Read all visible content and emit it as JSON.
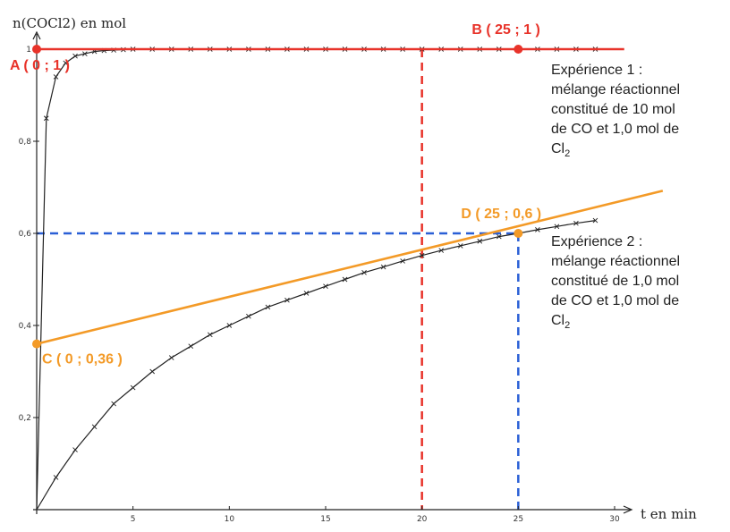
{
  "chart_data": {
    "type": "line",
    "xlabel": "t en min",
    "ylabel": "n(COCl2) en mol",
    "xlim": [
      0,
      30
    ],
    "ylim": [
      0,
      1
    ],
    "xticks": [
      {
        "value": 5,
        "label": "5"
      },
      {
        "value": 10,
        "label": "10"
      },
      {
        "value": 15,
        "label": "15"
      },
      {
        "value": 20,
        "label": "20"
      },
      {
        "value": 25,
        "label": "25"
      },
      {
        "value": 30,
        "label": "30"
      }
    ],
    "yticks": [
      {
        "value": 0.2,
        "label": "0,2"
      },
      {
        "value": 0.4,
        "label": "0,4"
      },
      {
        "value": 0.6,
        "label": "0,6"
      },
      {
        "value": 0.8,
        "label": "0,8"
      },
      {
        "value": 1,
        "label": "1"
      }
    ],
    "series": [
      {
        "color": "#222222",
        "marker": "x",
        "x": [
          0,
          0.5,
          1,
          1.5,
          2,
          2.5,
          3,
          3.5,
          4,
          4.5,
          5,
          6,
          7,
          8,
          9,
          10,
          11,
          12,
          13,
          14,
          15,
          16,
          17,
          18,
          19,
          20,
          21,
          22,
          23,
          24,
          25,
          26,
          27,
          28,
          29
        ],
        "y": [
          0,
          0.85,
          0.94,
          0.97,
          0.985,
          0.99,
          0.995,
          0.997,
          0.998,
          0.999,
          1,
          1,
          1,
          1,
          1,
          1,
          1,
          1,
          1,
          1,
          1,
          1,
          1,
          1,
          1,
          1,
          1,
          1,
          1,
          1,
          1,
          1,
          1,
          1,
          1
        ],
        "note": "Expérience 1"
      },
      {
        "color": "#222222",
        "marker": "x",
        "x": [
          0,
          1,
          2,
          3,
          4,
          5,
          6,
          7,
          8,
          9,
          10,
          11,
          12,
          13,
          14,
          15,
          16,
          17,
          18,
          19,
          20,
          21,
          22,
          23,
          24,
          25,
          26,
          27,
          28,
          29
        ],
        "y": [
          0,
          0.07,
          0.13,
          0.18,
          0.23,
          0.265,
          0.3,
          0.33,
          0.355,
          0.38,
          0.4,
          0.42,
          0.44,
          0.455,
          0.47,
          0.485,
          0.5,
          0.515,
          0.527,
          0.54,
          0.552,
          0.563,
          0.573,
          0.583,
          0.593,
          0.6,
          0.608,
          0.615,
          0.622,
          0.628
        ],
        "note": "Expérience 2"
      }
    ],
    "points": [
      {
        "name": "A",
        "label": "A ( 0 ; 1 )",
        "x": 0,
        "y": 1,
        "color": "#e8332a"
      },
      {
        "name": "B",
        "label": "B ( 25 ; 1 )",
        "x": 25,
        "y": 1,
        "color": "#e8332a"
      },
      {
        "name": "C",
        "label": "C ( 0 ; 0,36 )",
        "x": 0,
        "y": 0.36,
        "color": "#f39a27"
      },
      {
        "name": "D",
        "label": "D ( 25 ; 0,6 )",
        "x": 25,
        "y": 0.6,
        "color": "#f39a27"
      }
    ],
    "tangent_lines": [
      {
        "name": "tangent-1",
        "x": [
          0,
          30.5
        ],
        "y": [
          1,
          1
        ],
        "color": "#e8332a"
      },
      {
        "name": "tangent-2",
        "x": [
          0,
          32.5
        ],
        "y": [
          0.36,
          0.6924
        ],
        "color": "#f39a27"
      }
    ],
    "guides": [
      {
        "name": "red-vertical-guide",
        "x": [
          20,
          20
        ],
        "y": [
          1,
          0
        ],
        "color": "#e8332a"
      },
      {
        "name": "blue-horizontal-guide",
        "x": [
          0,
          25
        ],
        "y": [
          0.6,
          0.6
        ],
        "color": "#2a5fd6"
      },
      {
        "name": "blue-vertical-guide",
        "x": [
          25,
          25
        ],
        "y": [
          0.6,
          0
        ],
        "color": "#2a5fd6"
      }
    ],
    "annotations": [
      {
        "name": "experience-1-note",
        "lines": [
          "Expérience 1 :",
          "mélange réactionnel",
          "constitué de 10 mol",
          "de CO et 1,0 mol de",
          "Cl2"
        ]
      },
      {
        "name": "experience-2-note",
        "lines": [
          "Expérience 2 :",
          "mélange réactionnel",
          "constitué de 1,0 mol",
          "de CO et 1,0 mol de",
          "Cl2"
        ]
      }
    ]
  }
}
